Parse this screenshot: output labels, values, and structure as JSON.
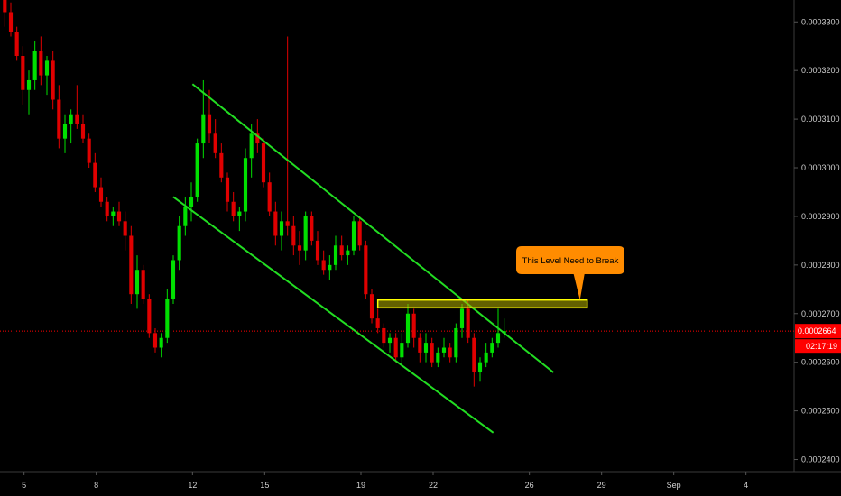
{
  "chart_data": {
    "type": "candlestick",
    "title": "",
    "y_ticks": [
      "0.0003300",
      "0.0003200",
      "0.0003100",
      "0.0003000",
      "0.0002900",
      "0.0002800",
      "0.0002700",
      "0.0002600",
      "0.0002500",
      "0.0002400"
    ],
    "y_tick_values": [
      0.00033,
      0.00032,
      0.00031,
      0.0003,
      0.00029,
      0.00028,
      0.00027,
      0.00026,
      0.00025,
      0.00024
    ],
    "x_ticks": [
      "5",
      "8",
      "12",
      "15",
      "19",
      "22",
      "26",
      "29",
      "Sep",
      "4"
    ],
    "x_tick_days": [
      5,
      8,
      12,
      15,
      19,
      22,
      26,
      29,
      32,
      35
    ],
    "ylim": [
      0.0002375,
      0.0003345
    ],
    "xlim": [
      4.0,
      37.0
    ],
    "last_price": "0.0002664",
    "last_price_value": 0.0002664,
    "countdown": "02:17:19",
    "colors": {
      "up": "#00e000",
      "down": "#e00000",
      "channel": "#22dd22",
      "zone_fill": "#b5b000",
      "zone_border": "#ffff00",
      "callout": "#ff8c00",
      "price_line": "#ff0000",
      "label_bg": "#ff0000"
    },
    "annotation": {
      "text": "This Level Need to Break",
      "type": "callout"
    },
    "zone": {
      "x_start": 19.7,
      "x_end": 28.4,
      "y_low": 0.0002712,
      "y_high": 0.0002728
    },
    "channel_upper": [
      [
        12.0,
        0.0003172
      ],
      [
        27.0,
        0.0002579
      ]
    ],
    "channel_lower": [
      [
        11.2,
        0.000294
      ],
      [
        24.5,
        0.0002455
      ]
    ],
    "candles": [
      [
        4.2,
        0.000335,
        0.000336,
        0.000329,
        0.000332
      ],
      [
        4.45,
        0.000332,
        0.000334,
        0.000327,
        0.000328
      ],
      [
        4.7,
        0.000328,
        0.000329,
        0.000322,
        0.000323
      ],
      [
        4.95,
        0.000323,
        0.000325,
        0.000313,
        0.000316
      ],
      [
        5.2,
        0.000316,
        0.00032,
        0.000311,
        0.000318
      ],
      [
        5.45,
        0.000318,
        0.000326,
        0.000316,
        0.000324
      ],
      [
        5.7,
        0.000324,
        0.000327,
        0.000317,
        0.000319
      ],
      [
        5.95,
        0.000319,
        0.000323,
        0.000315,
        0.000322
      ],
      [
        6.2,
        0.000322,
        0.000324,
        0.000312,
        0.000314
      ],
      [
        6.45,
        0.000314,
        0.000317,
        0.000304,
        0.000306
      ],
      [
        6.7,
        0.000306,
        0.000311,
        0.000303,
        0.000309
      ],
      [
        6.95,
        0.000309,
        0.000312,
        0.000305,
        0.000311
      ],
      [
        7.2,
        0.000311,
        0.000317,
        0.000308,
        0.000309
      ],
      [
        7.45,
        0.000309,
        0.000311,
        0.000305,
        0.000306
      ],
      [
        7.7,
        0.000306,
        0.000307,
        0.0003,
        0.000301
      ],
      [
        7.95,
        0.000301,
        0.000303,
        0.000295,
        0.000296
      ],
      [
        8.2,
        0.000296,
        0.000298,
        0.000292,
        0.000293
      ],
      [
        8.45,
        0.000293,
        0.000294,
        0.000289,
        0.00029
      ],
      [
        8.7,
        0.00029,
        0.000292,
        0.000288,
        0.000291
      ],
      [
        8.95,
        0.000291,
        0.000293,
        0.000288,
        0.000289
      ],
      [
        9.2,
        0.000289,
        0.000291,
        0.000283,
        0.000286
      ],
      [
        9.45,
        0.000286,
        0.000288,
        0.000272,
        0.000274
      ],
      [
        9.7,
        0.000274,
        0.000282,
        0.000271,
        0.000279
      ],
      [
        9.95,
        0.000279,
        0.00028,
        0.000272,
        0.000273
      ],
      [
        10.2,
        0.000273,
        0.000274,
        0.000265,
        0.000266
      ],
      [
        10.45,
        0.000266,
        0.000267,
        0.000262,
        0.000263
      ],
      [
        10.7,
        0.000263,
        0.000266,
        0.000261,
        0.000265
      ],
      [
        10.95,
        0.000265,
        0.000275,
        0.000264,
        0.000273
      ],
      [
        11.2,
        0.000273,
        0.000282,
        0.000272,
        0.000281
      ],
      [
        11.45,
        0.000281,
        0.00029,
        0.000279,
        0.000288
      ],
      [
        11.7,
        0.000288,
        0.000294,
        0.000286,
        0.000292
      ],
      [
        11.95,
        0.000292,
        0.000297,
        0.000289,
        0.000294
      ],
      [
        12.2,
        0.000294,
        0.000306,
        0.000293,
        0.000305
      ],
      [
        12.45,
        0.000305,
        0.000318,
        0.000302,
        0.000311
      ],
      [
        12.7,
        0.000311,
        0.000316,
        0.000305,
        0.000307
      ],
      [
        12.95,
        0.000307,
        0.00031,
        0.000302,
        0.000303
      ],
      [
        13.2,
        0.000303,
        0.000305,
        0.000297,
        0.000298
      ],
      [
        13.45,
        0.000298,
        0.000299,
        0.000291,
        0.000293
      ],
      [
        13.7,
        0.000293,
        0.000295,
        0.000289,
        0.00029
      ],
      [
        13.95,
        0.00029,
        0.000292,
        0.000287,
        0.000291
      ],
      [
        14.2,
        0.000291,
        0.000304,
        0.000289,
        0.000302
      ],
      [
        14.45,
        0.000302,
        0.000309,
        0.000298,
        0.000307
      ],
      [
        14.7,
        0.000307,
        0.00031,
        0.000303,
        0.000305
      ],
      [
        14.95,
        0.000305,
        0.000306,
        0.000296,
        0.000297
      ],
      [
        15.2,
        0.000297,
        0.000299,
        0.00029,
        0.000291
      ],
      [
        15.45,
        0.000291,
        0.000293,
        0.000284,
        0.000286
      ],
      [
        15.7,
        0.000286,
        0.000291,
        0.000283,
        0.000289
      ],
      [
        15.95,
        0.000289,
        0.000327,
        0.000286,
        0.000288
      ],
      [
        16.2,
        0.000288,
        0.00029,
        0.000282,
        0.000284
      ],
      [
        16.45,
        0.000284,
        0.000287,
        0.00028,
        0.000283
      ],
      [
        16.7,
        0.000283,
        0.000291,
        0.000281,
        0.00029
      ],
      [
        16.95,
        0.00029,
        0.000291,
        0.000284,
        0.000285
      ],
      [
        17.2,
        0.000285,
        0.000287,
        0.00028,
        0.000281
      ],
      [
        17.45,
        0.000281,
        0.000283,
        0.000278,
        0.000279
      ],
      [
        17.7,
        0.000279,
        0.000282,
        0.000277,
        0.00028
      ],
      [
        17.95,
        0.00028,
        0.000286,
        0.000279,
        0.000284
      ],
      [
        18.2,
        0.000284,
        0.000286,
        0.000281,
        0.000282
      ],
      [
        18.45,
        0.000282,
        0.000284,
        0.00028,
        0.000283
      ],
      [
        18.7,
        0.000283,
        0.00029,
        0.000282,
        0.000289
      ],
      [
        18.95,
        0.000289,
        0.00029,
        0.000283,
        0.000284
      ],
      [
        19.2,
        0.000284,
        0.000285,
        0.000273,
        0.000274
      ],
      [
        19.45,
        0.000274,
        0.000275,
        0.000268,
        0.000269
      ],
      [
        19.7,
        0.000269,
        0.000271,
        0.000266,
        0.000267
      ],
      [
        19.95,
        0.000267,
        0.000268,
        0.000263,
        0.000264
      ],
      [
        20.2,
        0.000264,
        0.000266,
        0.000262,
        0.000265
      ],
      [
        20.45,
        0.000265,
        0.000266,
        0.00026,
        0.000261
      ],
      [
        20.7,
        0.000261,
        0.000266,
        0.000259,
        0.000264
      ],
      [
        20.95,
        0.000264,
        0.000272,
        0.000263,
        0.00027
      ],
      [
        21.2,
        0.00027,
        0.000271,
        0.000263,
        0.000265
      ],
      [
        21.45,
        0.000265,
        0.000266,
        0.00026,
        0.000262
      ],
      [
        21.7,
        0.000262,
        0.000266,
        0.00026,
        0.000264
      ],
      [
        21.95,
        0.000264,
        0.000265,
        0.000259,
        0.00026
      ],
      [
        22.2,
        0.00026,
        0.000263,
        0.000259,
        0.000262
      ],
      [
        22.45,
        0.000262,
        0.000265,
        0.000261,
        0.000263
      ],
      [
        22.7,
        0.000263,
        0.000264,
        0.00026,
        0.000261
      ],
      [
        22.95,
        0.000261,
        0.000268,
        0.00026,
        0.000267
      ],
      [
        23.2,
        0.000267,
        0.000272,
        0.000265,
        0.000271
      ],
      [
        23.45,
        0.000271,
        0.000273,
        0.000264,
        0.000265
      ],
      [
        23.7,
        0.000265,
        0.000266,
        0.000255,
        0.000258
      ],
      [
        23.95,
        0.000258,
        0.000261,
        0.000256,
        0.00026
      ],
      [
        24.2,
        0.00026,
        0.000264,
        0.000259,
        0.000262
      ],
      [
        24.45,
        0.000262,
        0.000265,
        0.000261,
        0.000264
      ],
      [
        24.7,
        0.000264,
        0.000271,
        0.000263,
        0.000266
      ],
      [
        24.95,
        0.000266,
        0.000269,
        0.000265,
        0.0002664
      ]
    ]
  }
}
